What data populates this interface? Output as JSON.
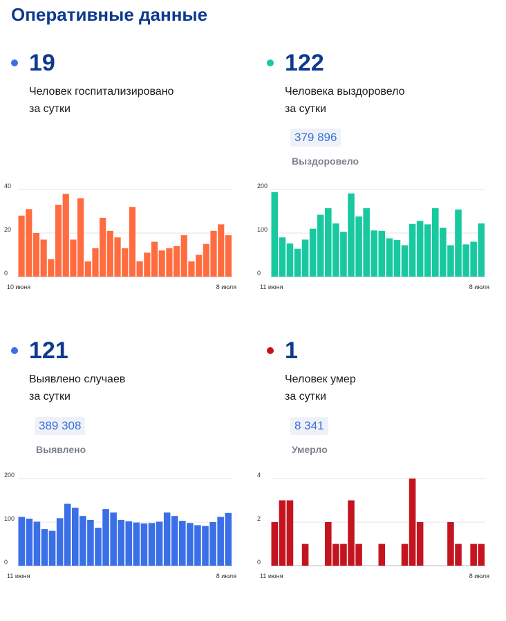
{
  "page_title": "Оперативные данные",
  "panels": [
    {
      "number": "19",
      "desc_line1": "Человек госпитализировано",
      "desc_line2": "за сутки",
      "badge_value": "",
      "badge_label": "",
      "dot_color": "#3b6fe8"
    },
    {
      "number": "122",
      "desc_line1": "Человека выздоровело",
      "desc_line2": "за сутки",
      "badge_value": "379 896",
      "badge_label": "Выздоровело",
      "dot_color": "#18c9a0"
    },
    {
      "number": "121",
      "desc_line1": "Выявлено случаев",
      "desc_line2": "за сутки",
      "badge_value": "389 308",
      "badge_label": "Выявлено",
      "dot_color": "#3b6fe8"
    },
    {
      "number": "1",
      "desc_line1": "Человек умер",
      "desc_line2": "за сутки",
      "badge_value": "8 341",
      "badge_label": "Умерло",
      "dot_color": "#c41420"
    }
  ],
  "chart_data": [
    {
      "type": "bar",
      "color": "#ff6c40",
      "ylim": [
        0,
        40
      ],
      "yticks": [
        "40",
        "20",
        "0"
      ],
      "x_start_label": "10 июня",
      "x_end_label": "8 июля",
      "values": [
        28,
        31,
        20,
        17,
        8,
        33,
        38,
        17,
        36,
        7,
        13,
        27,
        21,
        18,
        13,
        32,
        7,
        11,
        16,
        12,
        13,
        14,
        19,
        7,
        10,
        15,
        21,
        24,
        19
      ]
    },
    {
      "type": "bar",
      "color": "#18c9a0",
      "ylim": [
        0,
        200
      ],
      "yticks": [
        "200",
        "100",
        "0"
      ],
      "x_start_label": "11 июня",
      "x_end_label": "8 июля",
      "values": [
        194,
        90,
        76,
        64,
        85,
        110,
        142,
        157,
        122,
        103,
        191,
        138,
        157,
        106,
        105,
        88,
        84,
        72,
        121,
        128,
        120,
        157,
        112,
        72,
        154,
        74,
        80,
        122
      ]
    },
    {
      "type": "bar",
      "color": "#3b6fe8",
      "ylim": [
        0,
        200
      ],
      "yticks": [
        "200",
        "100",
        "0"
      ],
      "x_start_label": "11 июня",
      "x_end_label": "8 июля",
      "values": [
        112,
        108,
        101,
        84,
        80,
        109,
        142,
        133,
        114,
        105,
        87,
        130,
        122,
        105,
        102,
        99,
        97,
        98,
        101,
        122,
        114,
        103,
        98,
        93,
        91,
        100,
        112,
        121
      ]
    },
    {
      "type": "bar",
      "color": "#c41420",
      "ylim": [
        0,
        4
      ],
      "yticks": [
        "4",
        "2",
        "0"
      ],
      "x_start_label": "11 июня",
      "x_end_label": "8 июля",
      "values": [
        2,
        3,
        3,
        0,
        1,
        0,
        0,
        2,
        1,
        1,
        3,
        1,
        0,
        0,
        1,
        0,
        0,
        1,
        4,
        2,
        0,
        0,
        0,
        2,
        1,
        0,
        1,
        1
      ]
    }
  ]
}
